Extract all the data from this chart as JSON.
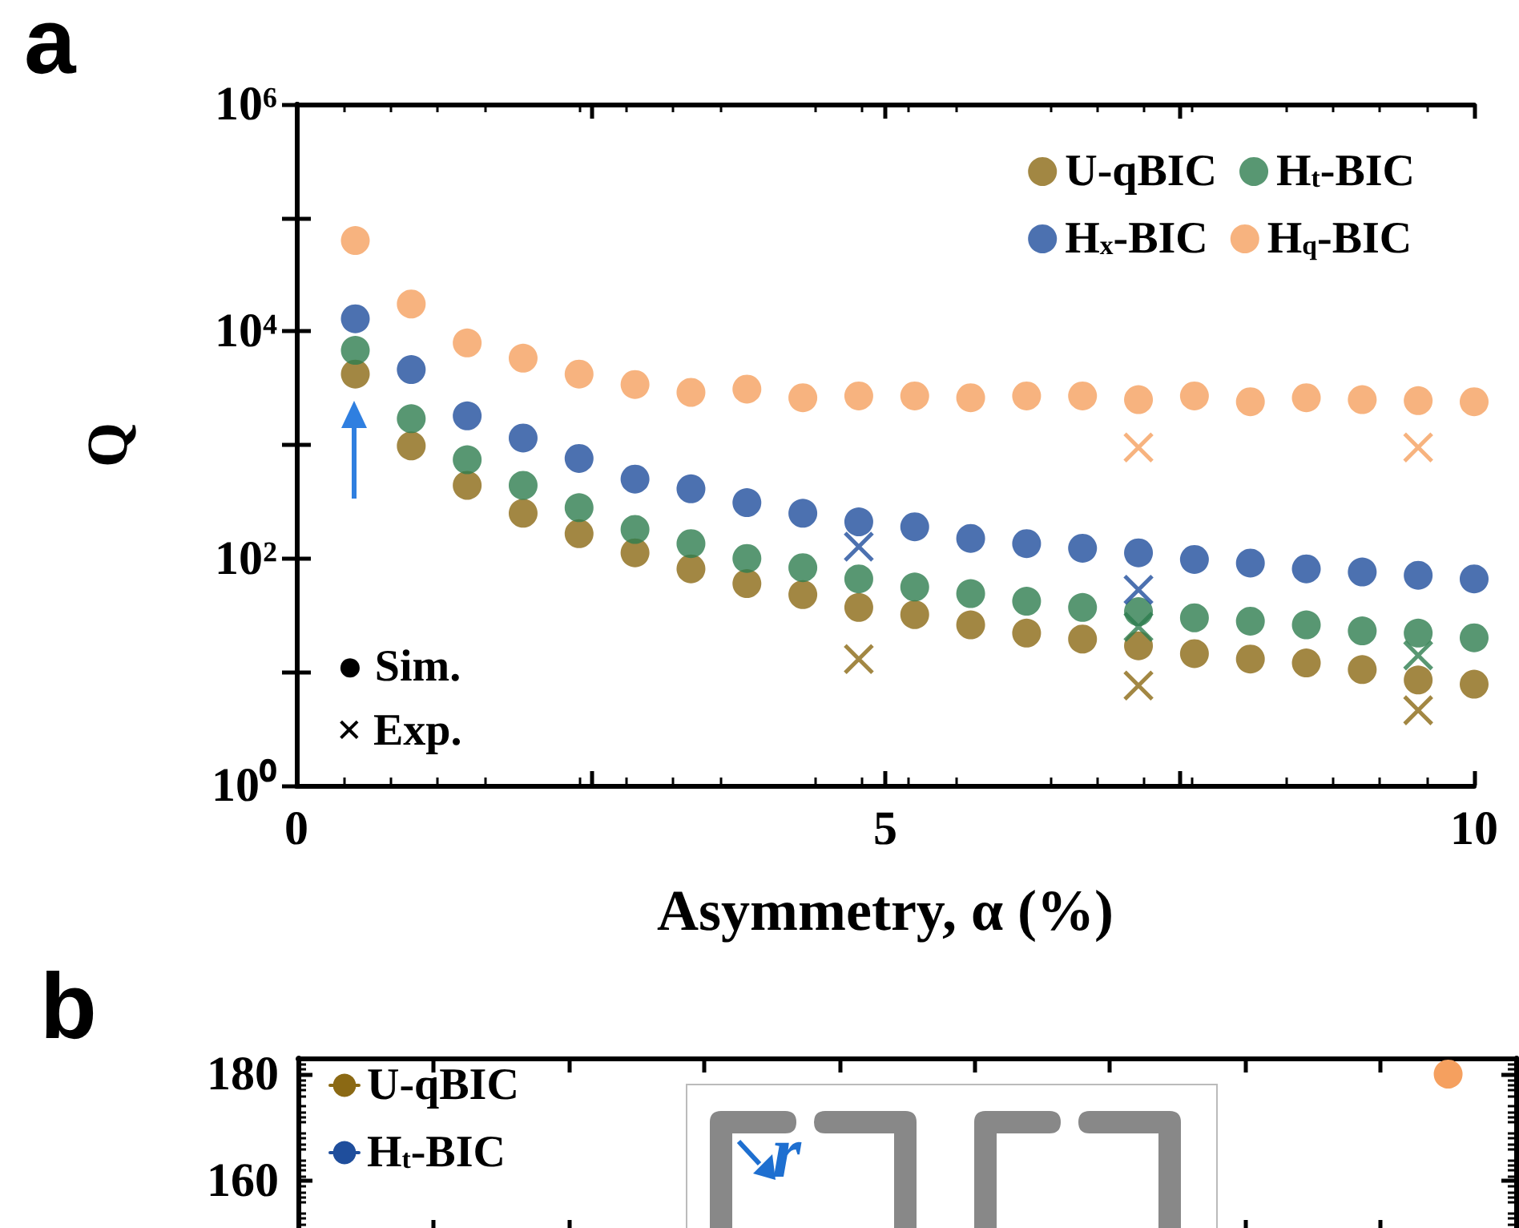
{
  "chart_data": [
    {
      "type": "scatter",
      "title": "a",
      "xlabel": "Asymmetry, α (%)",
      "ylabel": "Q",
      "log": "y",
      "marker": "circle",
      "legend": "top right",
      "grid": false,
      "xlim": [
        0,
        10
      ],
      "xticks": [
        0,
        {
          "value": 2.5,
          "label": null
        },
        5,
        {
          "value": 7.5,
          "label": null
        },
        10
      ],
      "ylim": [
        1,
        1000000
      ],
      "yticks": [
        {
          "value": 1,
          "label": "10⁰"
        },
        {
          "value": 10,
          "label": null
        },
        {
          "value": 100,
          "label": "10²"
        },
        {
          "value": 1000,
          "label": null
        },
        {
          "value": 10000,
          "label": "10⁴"
        },
        {
          "value": 100000,
          "label": null
        },
        {
          "value": 1000000,
          "label": "10⁶"
        }
      ],
      "x": [
        0.5,
        0.975,
        1.45,
        1.925,
        2.4,
        2.875,
        3.35,
        3.825,
        4.3,
        4.775,
        5.25,
        5.725,
        6.2,
        6.675,
        7.15,
        7.625,
        8.1,
        8.575,
        9.05,
        9.525,
        10
      ],
      "series": [
        {
          "name": "U-qBIC",
          "color": "#8b6914",
          "values": [
            4200,
            980,
            440,
            250,
            165,
            112,
            81,
            60,
            48,
            37,
            32,
            26,
            22,
            19.5,
            17,
            14.5,
            13,
            12,
            10.5,
            8.5,
            7.8
          ]
        },
        {
          "name": "H$_{t}$-BIC",
          "color": "#2e7d4f",
          "values": [
            6800,
            1700,
            740,
            440,
            280,
            180,
            135,
            100,
            83,
            66,
            56,
            49,
            42,
            37,
            34,
            30,
            28,
            26,
            23,
            22,
            20
          ]
        },
        {
          "name": "H$_{x}$-BIC",
          "color": "#1f4e9c",
          "values": [
            12900,
            4600,
            1800,
            1150,
            760,
            500,
            410,
            310,
            250,
            210,
            190,
            150,
            135,
            123,
            112,
            98,
            91,
            81,
            76,
            71,
            66
          ]
        },
        {
          "name": "H$_{q}$-BIC",
          "color": "#f5a05f",
          "values": [
            63000,
            17400,
            7900,
            5800,
            4200,
            3400,
            2900,
            3100,
            2600,
            2700,
            2700,
            2600,
            2700,
            2700,
            2500,
            2700,
            2400,
            2600,
            2500,
            2450,
            2400
          ]
        },
        {
          "color": "#8b6914",
          "marker": "cross",
          "x": [
            4.775,
            7.15,
            9.525
          ],
          "values": [
            13,
            7.6,
            4.6
          ]
        },
        {
          "color": "#2e7d4f",
          "marker": "cross",
          "x": [
            7.15,
            9.525
          ],
          "values": [
            25,
            14
          ]
        },
        {
          "color": "#1f4e9c",
          "marker": "cross",
          "x": [
            4.775,
            7.15
          ],
          "values": [
            127,
            53
          ]
        },
        {
          "color": "#f5a05f",
          "marker": "cross",
          "x": [
            7.15,
            9.525
          ],
          "values": [
            950,
            950
          ]
        }
      ],
      "annotations": [
        "● Sim.",
        "× Exp."
      ]
    },
    {
      "type": "line",
      "title": "b",
      "marker": "circle",
      "legend": "top left",
      "grid": false,
      "categories": [
        null,
        null,
        null,
        null,
        null,
        null,
        null,
        null,
        null
      ],
      "ylim": [
        150,
        183
      ],
      "yticks": [
        160,
        180
      ],
      "series": [
        {
          "name": "U-qBIC",
          "color": "#8b6914",
          "values": [
            null,
            null,
            null,
            null,
            null,
            null,
            null,
            null,
            null
          ]
        },
        {
          "name": "H$_{t}$-BIC",
          "color": "#1f4e9c",
          "values": [
            null,
            null,
            null,
            null,
            null,
            null,
            null,
            null,
            null
          ]
        },
        {
          "color": "#f5a05f",
          "values": [
            null,
            null,
            null,
            null,
            null,
            null,
            null,
            null,
            180
          ]
        }
      ],
      "annotations": [
        "r"
      ]
    }
  ]
}
